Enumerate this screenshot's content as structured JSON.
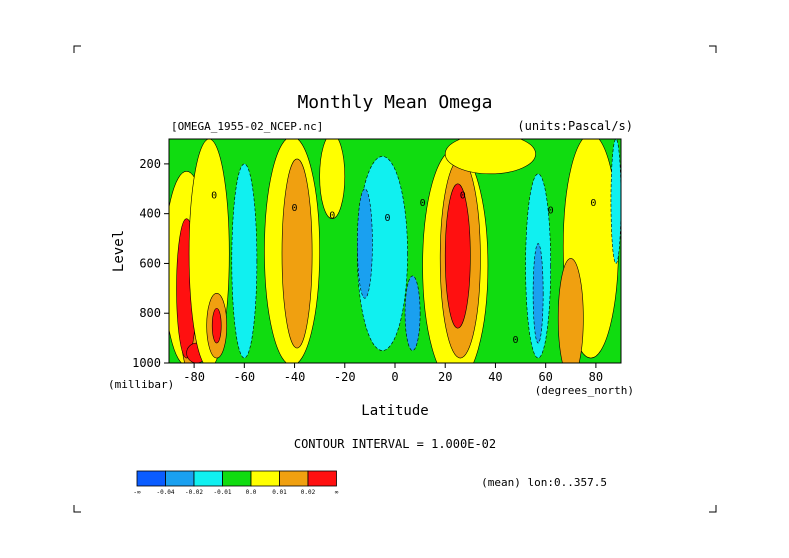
{
  "chart_data": {
    "type": "heatmap",
    "title": "Monthly Mean Omega",
    "subtitle_left": "[OMEGA_1955-02_NCEP.nc]",
    "subtitle_right": "(units:Pascal/s)",
    "xlabel": "Latitude",
    "x_units": "(degrees_north)",
    "ylabel": "Level",
    "y_units": "(millibar)",
    "xlim": [
      -90,
      90
    ],
    "ylim": [
      1000,
      100
    ],
    "x_ticks": [
      -80,
      -60,
      -40,
      -20,
      0,
      20,
      40,
      60,
      80
    ],
    "x_tick_labels": [
      "-80",
      "-60",
      "-40",
      "-20",
      "0",
      "20",
      "40",
      "60",
      "80"
    ],
    "y_ticks": [
      200,
      400,
      600,
      800,
      1000
    ],
    "y_tick_labels": [
      "200",
      "400",
      "600",
      "800",
      "1000"
    ],
    "contour_interval_text": "CONTOUR INTERVAL = 1.000E-02",
    "footer_text": "(mean) lon:0..357.5",
    "contour_labels": [
      {
        "lat": -72,
        "p": 340,
        "text": "0"
      },
      {
        "lat": -40,
        "p": 390,
        "text": "0"
      },
      {
        "lat": -25,
        "p": 420,
        "text": "0"
      },
      {
        "lat": -3,
        "p": 430,
        "text": "0"
      },
      {
        "lat": 11,
        "p": 370,
        "text": "0"
      },
      {
        "lat": 27,
        "p": 340,
        "text": "0"
      },
      {
        "lat": 48,
        "p": 920,
        "text": "0"
      },
      {
        "lat": 62,
        "p": 400,
        "text": "0"
      },
      {
        "lat": 79,
        "p": 370,
        "text": "0"
      }
    ],
    "legend": {
      "colors": [
        "#0a5cff",
        "#1aa0f0",
        "#10f0f0",
        "#10dc10",
        "#ffff00",
        "#f0a010",
        "#ff1010"
      ],
      "labels": [
        "-∞",
        "-0.04",
        "-0.02",
        "-0.01",
        "0.0",
        "0.01",
        "0.02",
        "∞"
      ]
    },
    "regions": [
      {
        "kind": "rect",
        "lat0": -90,
        "lat1": 90,
        "p0": 100,
        "p1": 1000,
        "color": "#10dc10"
      },
      {
        "kind": "ellipse",
        "lat": -83,
        "p": 620,
        "rlat": 9,
        "rp": 390,
        "color": "#ffff00"
      },
      {
        "kind": "ellipse",
        "lat": -81,
        "p": 750,
        "rlat": 5,
        "rp": 300,
        "color": "#f0a010"
      },
      {
        "kind": "ellipse",
        "lat": -83,
        "p": 700,
        "rlat": 4,
        "rp": 280,
        "color": "#ff1010"
      },
      {
        "kind": "ellipse",
        "lat": -79,
        "p": 960,
        "rlat": 4,
        "rp": 40,
        "color": "#ff1010"
      },
      {
        "kind": "ellipse",
        "lat": -74,
        "p": 560,
        "rlat": 8,
        "rp": 460,
        "color": "#ffff00"
      },
      {
        "kind": "ellipse",
        "lat": -71,
        "p": 850,
        "rlat": 4,
        "rp": 130,
        "color": "#f0a010"
      },
      {
        "kind": "ellipse",
        "lat": -71,
        "p": 850,
        "rlat": 1.8,
        "rp": 70,
        "color": "#ff1010"
      },
      {
        "kind": "ellipse",
        "lat": -60,
        "p": 590,
        "rlat": 5,
        "rp": 390,
        "color": "#10f0f0"
      },
      {
        "kind": "ellipse",
        "lat": -41,
        "p": 550,
        "rlat": 11,
        "rp": 460,
        "color": "#ffff00"
      },
      {
        "kind": "ellipse",
        "lat": -39,
        "p": 560,
        "rlat": 6,
        "rp": 380,
        "color": "#f0a010"
      },
      {
        "kind": "ellipse",
        "lat": -25,
        "p": 250,
        "rlat": 5,
        "rp": 170,
        "color": "#ffff00"
      },
      {
        "kind": "ellipse",
        "lat": -5,
        "p": 560,
        "rlat": 10,
        "rp": 390,
        "color": "#10f0f0"
      },
      {
        "kind": "ellipse",
        "lat": -12,
        "p": 520,
        "rlat": 3,
        "rp": 220,
        "color": "#1aa0f0"
      },
      {
        "kind": "ellipse",
        "lat": 7,
        "p": 800,
        "rlat": 3,
        "rp": 150,
        "color": "#1aa0f0"
      },
      {
        "kind": "ellipse",
        "lat": 24,
        "p": 610,
        "rlat": 13,
        "rp": 470,
        "color": "#ffff00"
      },
      {
        "kind": "ellipse",
        "lat": 26,
        "p": 580,
        "rlat": 8,
        "rp": 400,
        "color": "#f0a010"
      },
      {
        "kind": "ellipse",
        "lat": 25,
        "p": 570,
        "rlat": 5,
        "rp": 290,
        "color": "#ff1010"
      },
      {
        "kind": "ellipse",
        "lat": 38,
        "p": 160,
        "rlat": 18,
        "rp": 80,
        "color": "#ffff00"
      },
      {
        "kind": "ellipse",
        "lat": 57,
        "p": 610,
        "rlat": 5,
        "rp": 370,
        "color": "#10f0f0"
      },
      {
        "kind": "ellipse",
        "lat": 57,
        "p": 720,
        "rlat": 2,
        "rp": 200,
        "color": "#1aa0f0"
      },
      {
        "kind": "ellipse",
        "lat": 78,
        "p": 530,
        "rlat": 11,
        "rp": 450,
        "color": "#ffff00"
      },
      {
        "kind": "ellipse",
        "lat": 70,
        "p": 820,
        "rlat": 5,
        "rp": 240,
        "color": "#f0a010"
      },
      {
        "kind": "ellipse",
        "lat": 88,
        "p": 350,
        "rlat": 2,
        "rp": 250,
        "color": "#10f0f0"
      }
    ]
  }
}
